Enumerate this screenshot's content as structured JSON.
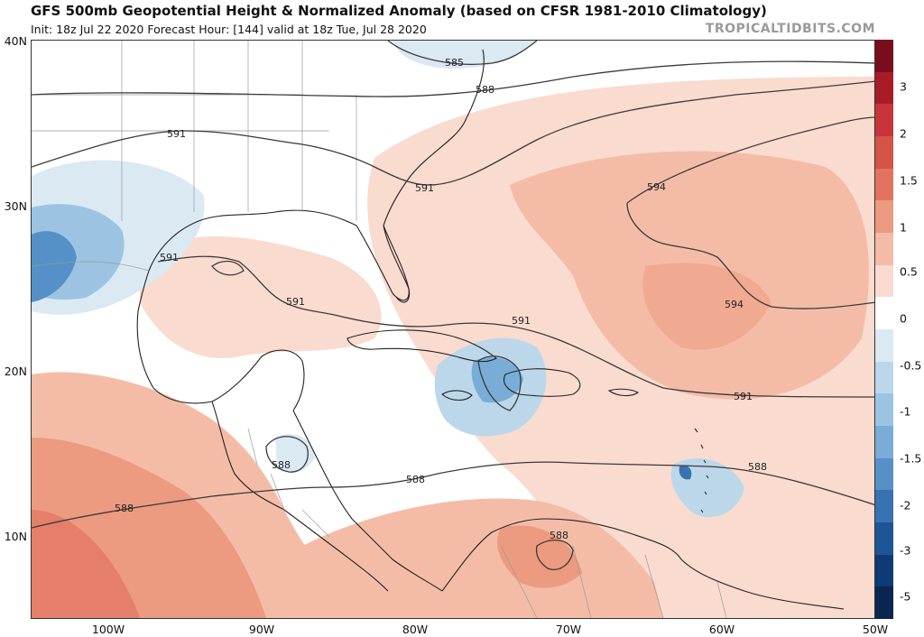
{
  "header": {
    "title": "GFS 500mb Geopotential Height & Normalized Anomaly (based on CFSR 1981-2010 Climatology)",
    "subtitle": "Init: 18z Jul 22 2020   Forecast Hour: [144]   valid at 18z Tue, Jul 28 2020",
    "credit": "TROPICALTIDBITS.COM"
  },
  "map": {
    "lat_labels": [
      "40N",
      "30N",
      "20N",
      "10N"
    ],
    "lon_labels": [
      "100W",
      "90W",
      "80W",
      "70W",
      "60W",
      "50W"
    ],
    "contour_labels": [
      "585",
      "588",
      "591",
      "591",
      "594",
      "594",
      "591",
      "591",
      "591",
      "591",
      "588",
      "588",
      "588",
      "588",
      "588"
    ],
    "colors": {
      "land_outline": "#222222",
      "contour": "#3a3a3a",
      "border": "#9a9a9a"
    }
  },
  "colorbar": {
    "labels": [
      "3",
      "2",
      "1.5",
      "1",
      "0.5",
      "0",
      "-0.5",
      "-1",
      "-1.5",
      "-2",
      "-3",
      "-5"
    ],
    "colors": [
      "#7a0d1d",
      "#a81c28",
      "#c7343a",
      "#d65348",
      "#e2735f",
      "#ec9a80",
      "#f4bca7",
      "#fadbcf",
      "#ffffff",
      "#dbe9f3",
      "#bdd7ea",
      "#9cc4e2",
      "#79add7",
      "#5591c6",
      "#3673b0",
      "#1d5596",
      "#0e3a75",
      "#0a2550"
    ]
  }
}
